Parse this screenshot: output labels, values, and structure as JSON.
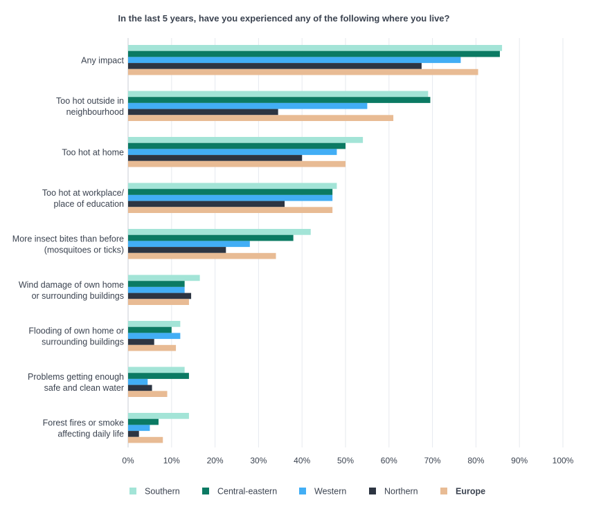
{
  "chart_data": {
    "type": "bar",
    "orientation": "horizontal",
    "title": "In the last 5 years, have you experienced any of the following where you live?",
    "categories": [
      [
        "Any impact"
      ],
      [
        "Too hot outside in",
        "neighbourhood"
      ],
      [
        "Too hot at home"
      ],
      [
        "Too hot at workplace/",
        "place of education"
      ],
      [
        "More insect bites than before",
        "(mosquitoes or ticks)"
      ],
      [
        "Wind damage of own home",
        "or surrounding buildings"
      ],
      [
        "Flooding of own home or",
        "surrounding buildings"
      ],
      [
        "Problems getting enough",
        "safe and clean water"
      ],
      [
        "Forest fires or smoke",
        "affecting daily life"
      ]
    ],
    "series": [
      {
        "name": "Southern",
        "color": "#a3e4d7",
        "values": [
          86,
          69,
          54,
          48,
          42,
          16.5,
          12,
          13,
          14
        ]
      },
      {
        "name": "Central-eastern",
        "color": "#0b7a63",
        "values": [
          85.5,
          69.5,
          50,
          47,
          38,
          13,
          10,
          14,
          7
        ]
      },
      {
        "name": "Western",
        "color": "#42aef5",
        "values": [
          76.5,
          55,
          48,
          47,
          28,
          13,
          12,
          4.5,
          5
        ]
      },
      {
        "name": "Northern",
        "color": "#2d3542",
        "values": [
          67.5,
          34.5,
          40,
          36,
          22.5,
          14.5,
          6,
          5.5,
          2.5
        ]
      },
      {
        "name": "Europe",
        "color": "#e8bb94",
        "values": [
          80.5,
          61,
          50,
          47,
          34,
          14,
          11,
          9,
          8
        ],
        "bold": true
      }
    ],
    "x_ticks": [
      "0%",
      "10%",
      "20%",
      "30%",
      "40%",
      "50%",
      "60%",
      "70%",
      "80%",
      "90%",
      "100%"
    ],
    "xlim": [
      0,
      100
    ],
    "grid": true,
    "legend_position": "bottom"
  }
}
